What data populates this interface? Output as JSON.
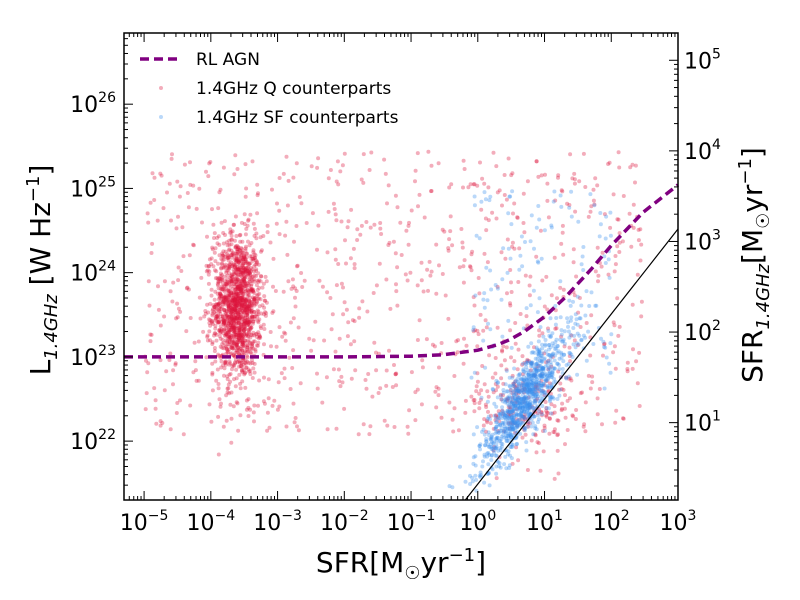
{
  "chart_data": {
    "type": "scatter",
    "title": "",
    "xlabel": "SFR[M☉yr⁻¹]",
    "ylabel": "L1.4GHz [W Hz⁻¹]",
    "ylabel_right": "SFR1.4GHz[M☉yr⁻¹]",
    "xscale": "log",
    "yscale": "log",
    "xlim": [
      5e-06,
      1000
    ],
    "ylim": [
      2e+21,
      7e+26
    ],
    "x_ticks": [
      {
        "value": 1e-05,
        "base": "10",
        "exp": "-5"
      },
      {
        "value": 0.0001,
        "base": "10",
        "exp": "-4"
      },
      {
        "value": 0.001,
        "base": "10",
        "exp": "-3"
      },
      {
        "value": 0.01,
        "base": "10",
        "exp": "-2"
      },
      {
        "value": 0.1,
        "base": "10",
        "exp": "-1"
      },
      {
        "value": 1,
        "base": "10",
        "exp": "0"
      },
      {
        "value": 10,
        "base": "10",
        "exp": "1"
      },
      {
        "value": 100,
        "base": "10",
        "exp": "2"
      },
      {
        "value": 1000,
        "base": "10",
        "exp": "3"
      }
    ],
    "y_ticks": [
      {
        "value": 1e+22,
        "base": "10",
        "exp": "22"
      },
      {
        "value": 1e+23,
        "base": "10",
        "exp": "23"
      },
      {
        "value": 1e+24,
        "base": "10",
        "exp": "24"
      },
      {
        "value": 1e+25,
        "base": "10",
        "exp": "25"
      },
      {
        "value": 1e+26,
        "base": "10",
        "exp": "26"
      }
    ],
    "y2_lim": [
      1.4,
      200000
    ],
    "y2_ticks": [
      {
        "value": 10,
        "base": "10",
        "exp": "1"
      },
      {
        "value": 100,
        "base": "10",
        "exp": "2"
      },
      {
        "value": 1000,
        "base": "10",
        "exp": "3"
      },
      {
        "value": 10000,
        "base": "10",
        "exp": "4"
      },
      {
        "value": 100000,
        "base": "10",
        "exp": "5"
      }
    ],
    "legend": {
      "location": "top-left",
      "entries": [
        "RL AGN",
        "1.4GHz Q counterparts",
        "1.4GHz SF counterparts"
      ]
    },
    "series": [
      {
        "name": "RL AGN",
        "kind": "dashed-line",
        "color": "#800080",
        "x": [
          5e-06,
          0.0001,
          0.01,
          0.1,
          0.3,
          1,
          2,
          3,
          5,
          10,
          20,
          50,
          100,
          300,
          1000
        ],
        "y": [
          1e+23,
          1e+23,
          1e+23,
          1.02e+23,
          1.06e+23,
          1.2e+23,
          1.4e+23,
          1.6e+23,
          2e+23,
          3e+23,
          5e+23,
          1.1e+24,
          2.1e+24,
          5.2e+24,
          1.1e+25
        ]
      },
      {
        "name": "SFR relation",
        "kind": "solid-line",
        "color": "#000000",
        "x": [
          0.65,
          1000
        ],
        "y": [
          2e+21,
          3.3e+24
        ]
      },
      {
        "name": "1.4GHz Q counterparts",
        "kind": "scatter",
        "color": "#dc143c",
        "clusters": [
          {
            "label": "quiescent clump",
            "x_center": 0.00025,
            "x_spread_dex": 0.18,
            "y_center": 4e+23,
            "y_spread_dex": 0.42,
            "count": 1300
          },
          {
            "label": "broad population",
            "x_range": [
              1e-05,
              300
            ],
            "y_range": [
              1.2e+22,
              2.8e+25
            ],
            "count": 800
          },
          {
            "label": "star-forming overlap",
            "x_center": 5,
            "x_spread_dex": 0.35,
            "y_center": 3e+22,
            "y_spread_dex": 0.35,
            "count": 200
          }
        ]
      },
      {
        "name": "1.4GHz SF counterparts",
        "kind": "scatter",
        "color": "#3a8eef",
        "clusters": [
          {
            "label": "main sequence",
            "x_center": 5,
            "x_spread_dex": 0.35,
            "y_offset_from_relation_dex": 0.3,
            "y_spread_dex": 0.22,
            "count": 900
          },
          {
            "label": "scattered",
            "x_range": [
              0.8,
              100
            ],
            "y_range": [
              3e+22,
              1e+25
            ],
            "count": 140
          }
        ]
      }
    ]
  }
}
